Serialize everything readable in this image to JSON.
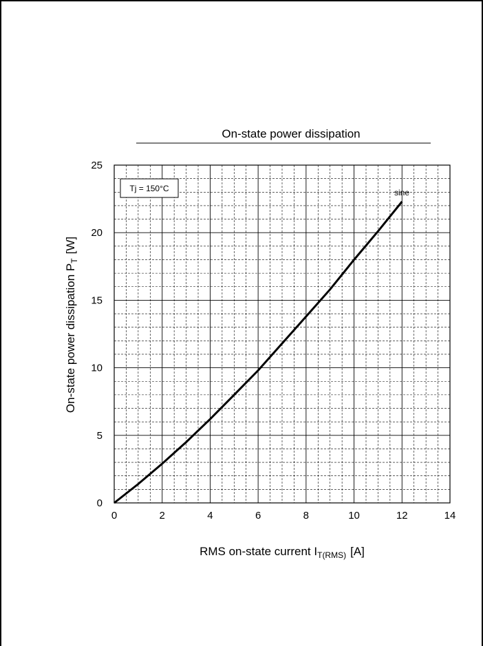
{
  "chart_data": {
    "type": "line",
    "title": "On-state power dissipation",
    "xlabel": {
      "main": "RMS on-state current I",
      "sub": "T(RMS)",
      "unit": "[A]"
    },
    "ylabel": {
      "main": "On-state power dissipation P",
      "sub": "T",
      "unit": "[W]"
    },
    "xlim": [
      0,
      14
    ],
    "ylim": [
      0,
      25
    ],
    "x_ticks": [
      0,
      2,
      4,
      6,
      8,
      10,
      12,
      14
    ],
    "y_ticks": [
      0,
      5,
      10,
      15,
      20,
      25
    ],
    "grid": true,
    "annotation": "Tj = 150°C",
    "series": [
      {
        "name": "sine",
        "x": [
          0,
          1,
          2,
          3,
          4,
          5,
          6,
          7,
          8,
          9,
          10,
          11,
          12
        ],
        "y": [
          0,
          1.4,
          2.9,
          4.5,
          6.2,
          8.0,
          9.8,
          11.8,
          13.8,
          15.8,
          18.0,
          20.1,
          22.3
        ]
      }
    ]
  }
}
